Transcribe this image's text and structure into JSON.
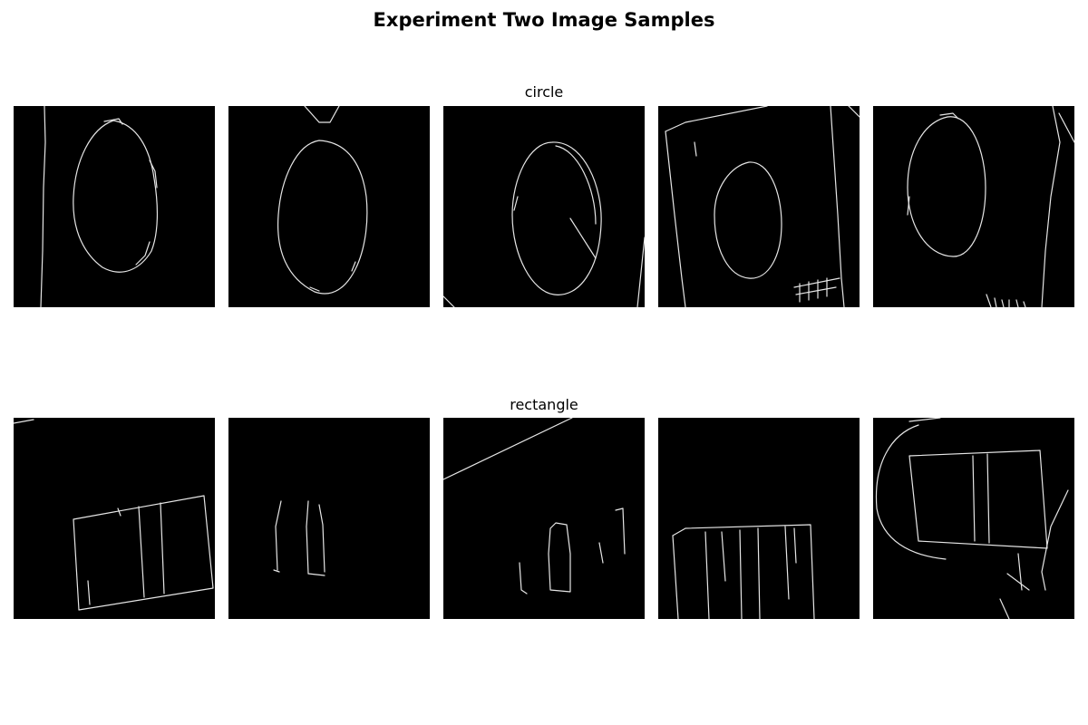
{
  "figure": {
    "title": "Experiment Two Image Samples"
  },
  "rows": [
    {
      "label": "circle",
      "panel_count": 5
    },
    {
      "label": "rectangle",
      "panel_count": 5
    }
  ]
}
